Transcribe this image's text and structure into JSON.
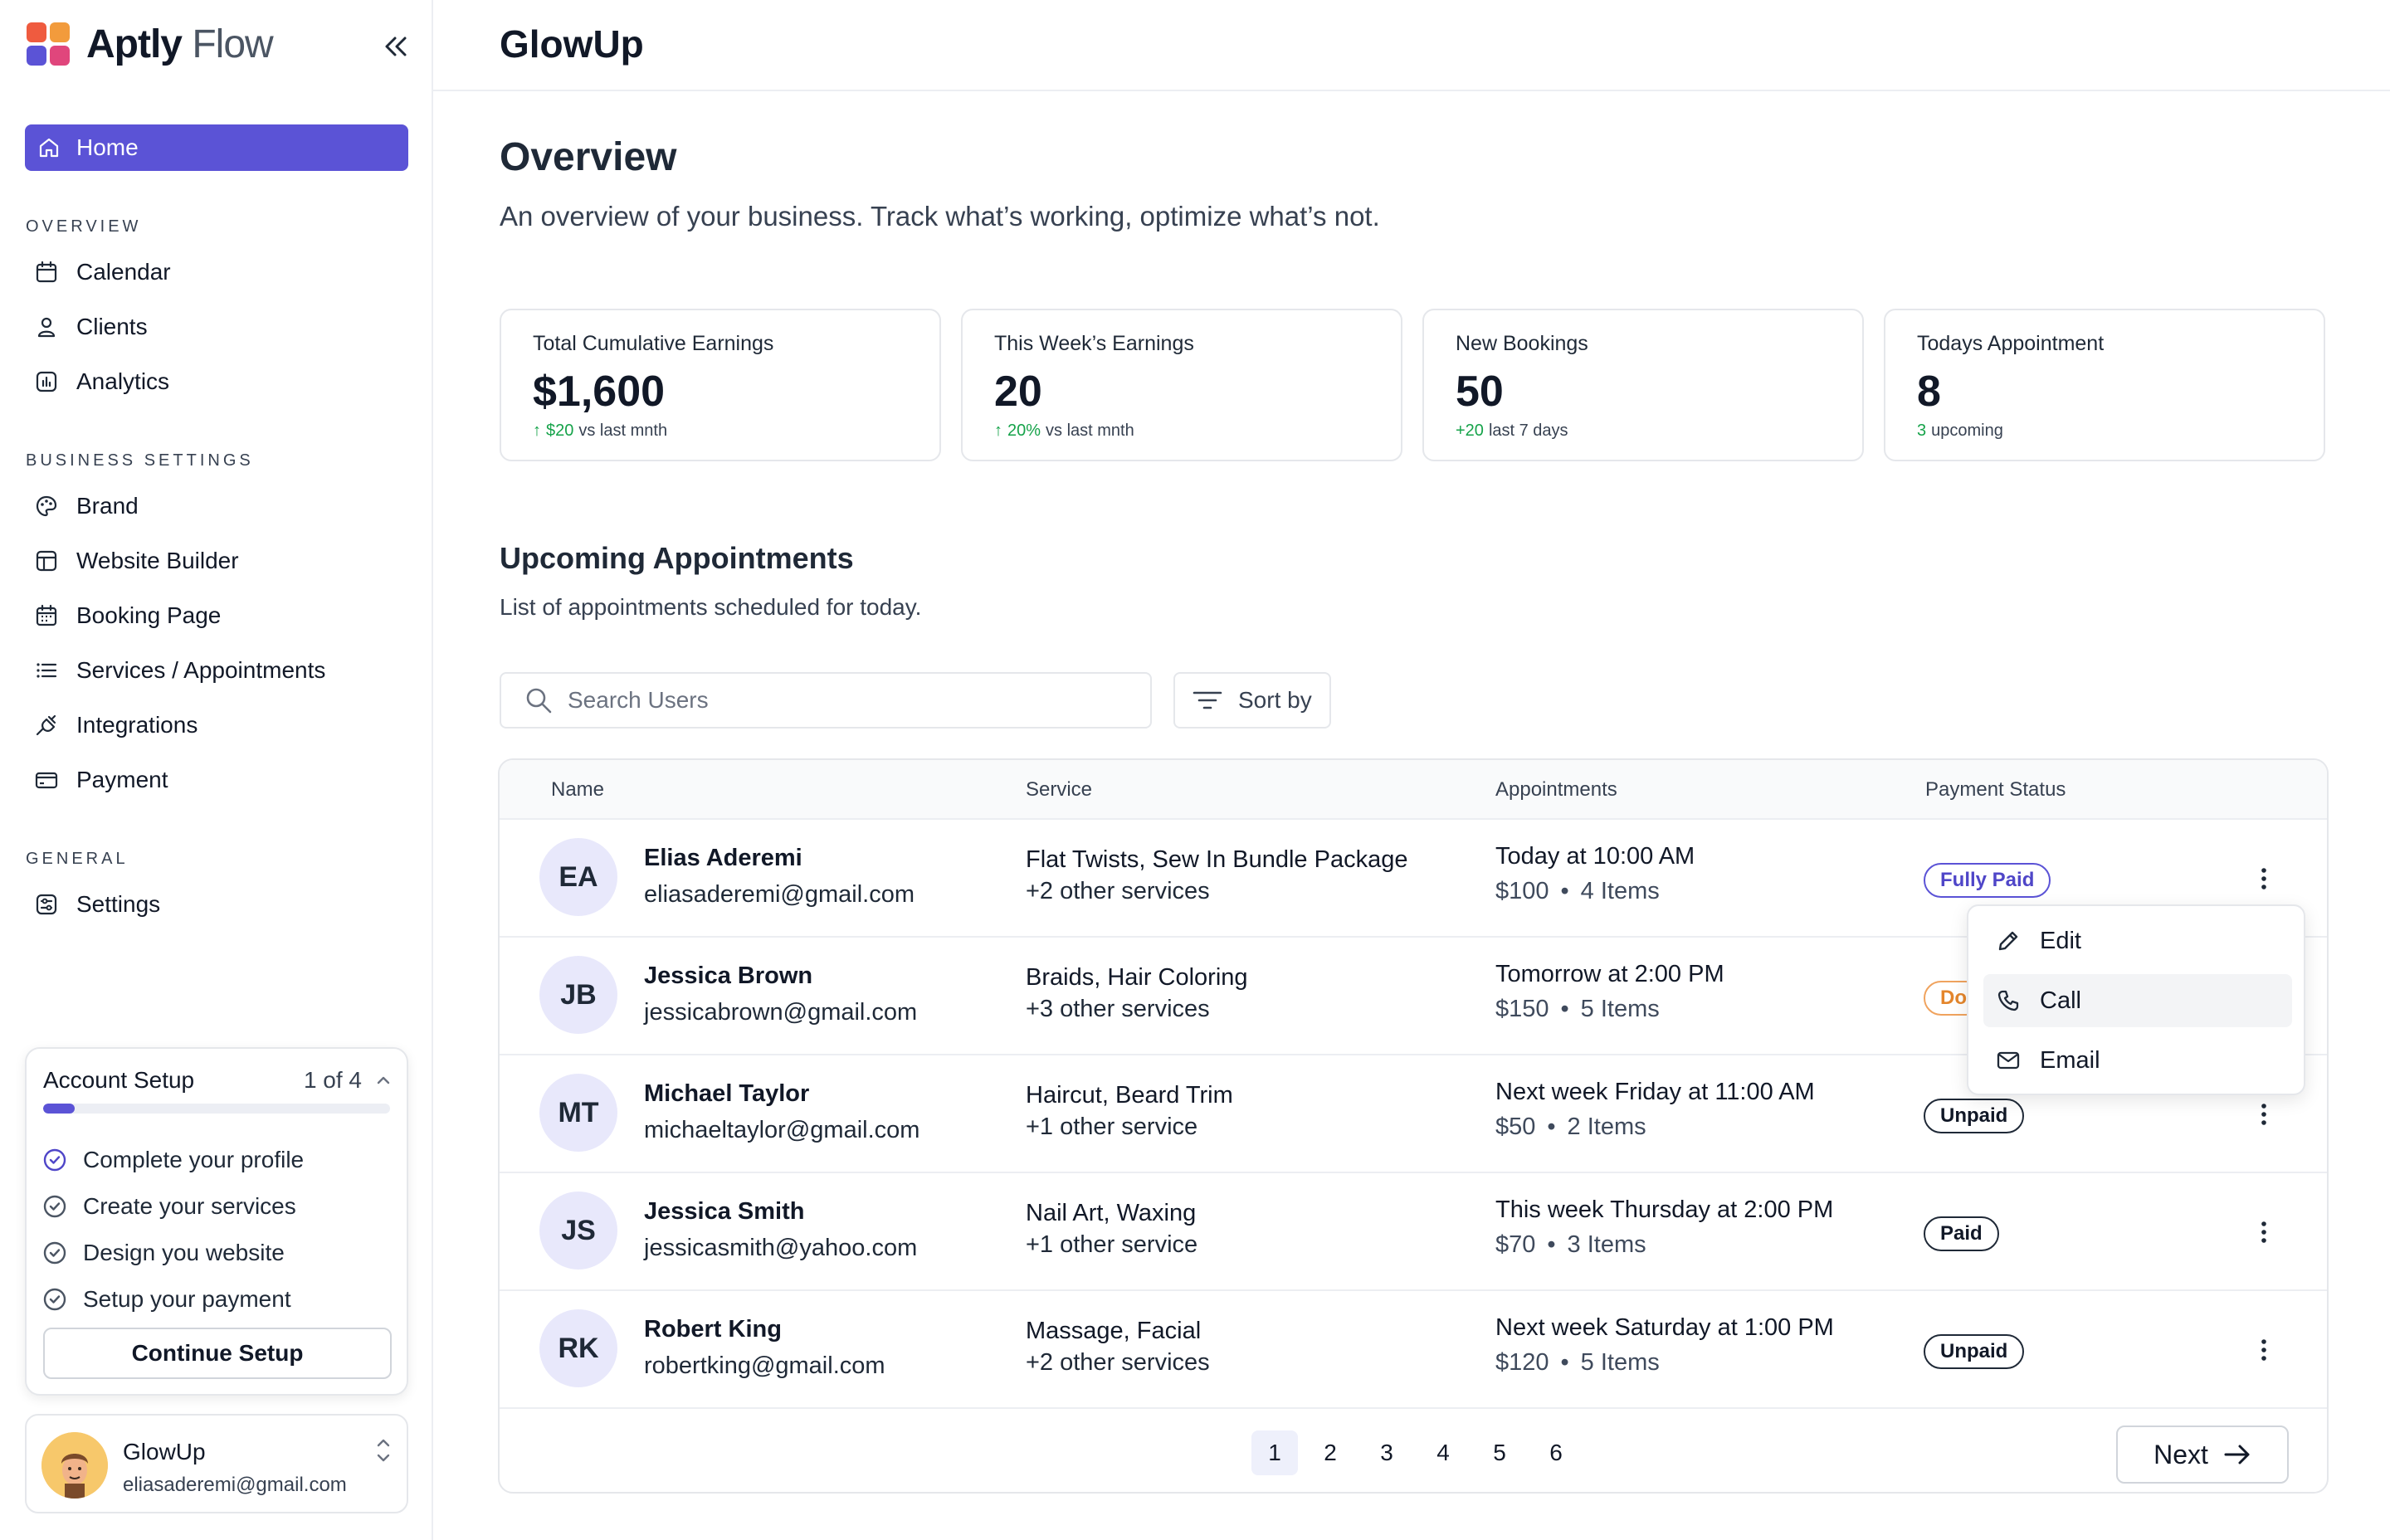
{
  "brand": {
    "name_bold": "Aptly",
    "name_light": " Flow",
    "colors": {
      "tile_top_left": "#ef5b3f",
      "tile_top_right": "#f29b3c",
      "tile_bottom_left": "#5b53d6",
      "tile_bottom_right": "#e0467c"
    }
  },
  "sidebar": {
    "home_label": "Home",
    "sections": [
      {
        "title": "OVERVIEW",
        "items": [
          {
            "label": "Calendar",
            "icon": "calendar-icon"
          },
          {
            "label": "Clients",
            "icon": "user-icon"
          },
          {
            "label": "Analytics",
            "icon": "analytics-icon"
          }
        ]
      },
      {
        "title": "BUSINESS SETTINGS",
        "items": [
          {
            "label": "Brand",
            "icon": "palette-icon"
          },
          {
            "label": "Website Builder",
            "icon": "layout-icon"
          },
          {
            "label": "Booking Page",
            "icon": "calendar-grid-icon"
          },
          {
            "label": "Services / Appointments",
            "icon": "list-icon"
          },
          {
            "label": "Integrations",
            "icon": "plug-icon"
          },
          {
            "label": "Payment",
            "icon": "card-icon"
          }
        ]
      },
      {
        "title": "GENERAL",
        "items": [
          {
            "label": "Settings",
            "icon": "settings-icon"
          }
        ]
      }
    ]
  },
  "setup": {
    "title": "Account Setup",
    "count": "1 of 4",
    "progress": 0.09,
    "steps": [
      "Complete your profile",
      "Create your services",
      "Design you website",
      "Setup your payment"
    ],
    "button": "Continue Setup"
  },
  "profile": {
    "name": "GlowUp",
    "email": "eliasaderemi@gmail.com"
  },
  "header": {
    "title": "GlowUp"
  },
  "overview": {
    "title": "Overview",
    "subtitle": "An overview of your business. Track what’s working, optimize what’s not."
  },
  "stats": [
    {
      "label": "Total Cumulative Earnings",
      "value": "$1,600",
      "delta": "$20",
      "delta_note": "vs last mnth",
      "arrow": true
    },
    {
      "label": "This Week’s Earnings",
      "value": "20",
      "delta": "20%",
      "delta_note": "vs last mnth",
      "arrow": true
    },
    {
      "label": "New Bookings",
      "value": "50",
      "delta": "+20",
      "delta_note": "last 7 days",
      "arrow": false
    },
    {
      "label": "Todays Appointment",
      "value": "8",
      "delta": "3",
      "delta_note": "upcoming",
      "arrow": false
    }
  ],
  "upcoming": {
    "title": "Upcoming Appointments",
    "subtitle": "List of appointments scheduled for today.",
    "search_placeholder": "Search Users",
    "sort_label": "Sort by"
  },
  "table": {
    "columns": [
      "Name",
      "Service",
      "Appointments",
      "Payment Status"
    ],
    "rows": [
      {
        "initials": "EA",
        "name": "Elias Aderemi",
        "email": "eliasaderemi@gmail.com",
        "service": "Flat Twists, Sew In Bundle Package",
        "service_more": "+2 other services",
        "when": "Today at 10:00 AM",
        "price": "$100",
        "items": "4 Items",
        "status": "Fully Paid",
        "status_kind": "full"
      },
      {
        "initials": "JB",
        "name": "Jessica Brown",
        "email": "jessicabrown@gmail.com",
        "service": "Braids, Hair Coloring",
        "service_more": "+3 other services",
        "when": "Tomorrow at 2:00 PM",
        "price": "$150",
        "items": "5 Items",
        "status": "Do",
        "status_kind": "down"
      },
      {
        "initials": "MT",
        "name": "Michael Taylor",
        "email": "michaeltaylor@gmail.com",
        "service": "Haircut, Beard Trim",
        "service_more": "+1 other service",
        "when": "Next week Friday at 11:00 AM",
        "price": "$50",
        "items": "2 Items",
        "status": "Unpaid",
        "status_kind": "unpaid"
      },
      {
        "initials": "JS",
        "name": "Jessica Smith",
        "email": "jessicasmith@yahoo.com",
        "service": "Nail Art, Waxing",
        "service_more": "+1 other service",
        "when": "This week Thursday at 2:00 PM",
        "price": "$70",
        "items": "3 Items",
        "status": "Paid",
        "status_kind": "paid"
      },
      {
        "initials": "RK",
        "name": "Robert King",
        "email": "robertking@gmail.com",
        "service": "Massage, Facial",
        "service_more": "+2 other services",
        "when": "Next week Saturday at 1:00 PM",
        "price": "$120",
        "items": "5 Items",
        "status": "Unpaid",
        "status_kind": "unpaid"
      }
    ],
    "dot": "•"
  },
  "pagination": {
    "pages": [
      "1",
      "2",
      "3",
      "4",
      "5",
      "6"
    ],
    "current": "1",
    "next_label": "Next"
  },
  "row_menu": {
    "items": [
      {
        "label": "Edit",
        "icon": "pencil-icon"
      },
      {
        "label": "Call",
        "icon": "phone-icon"
      },
      {
        "label": "Email",
        "icon": "mail-icon"
      }
    ]
  }
}
